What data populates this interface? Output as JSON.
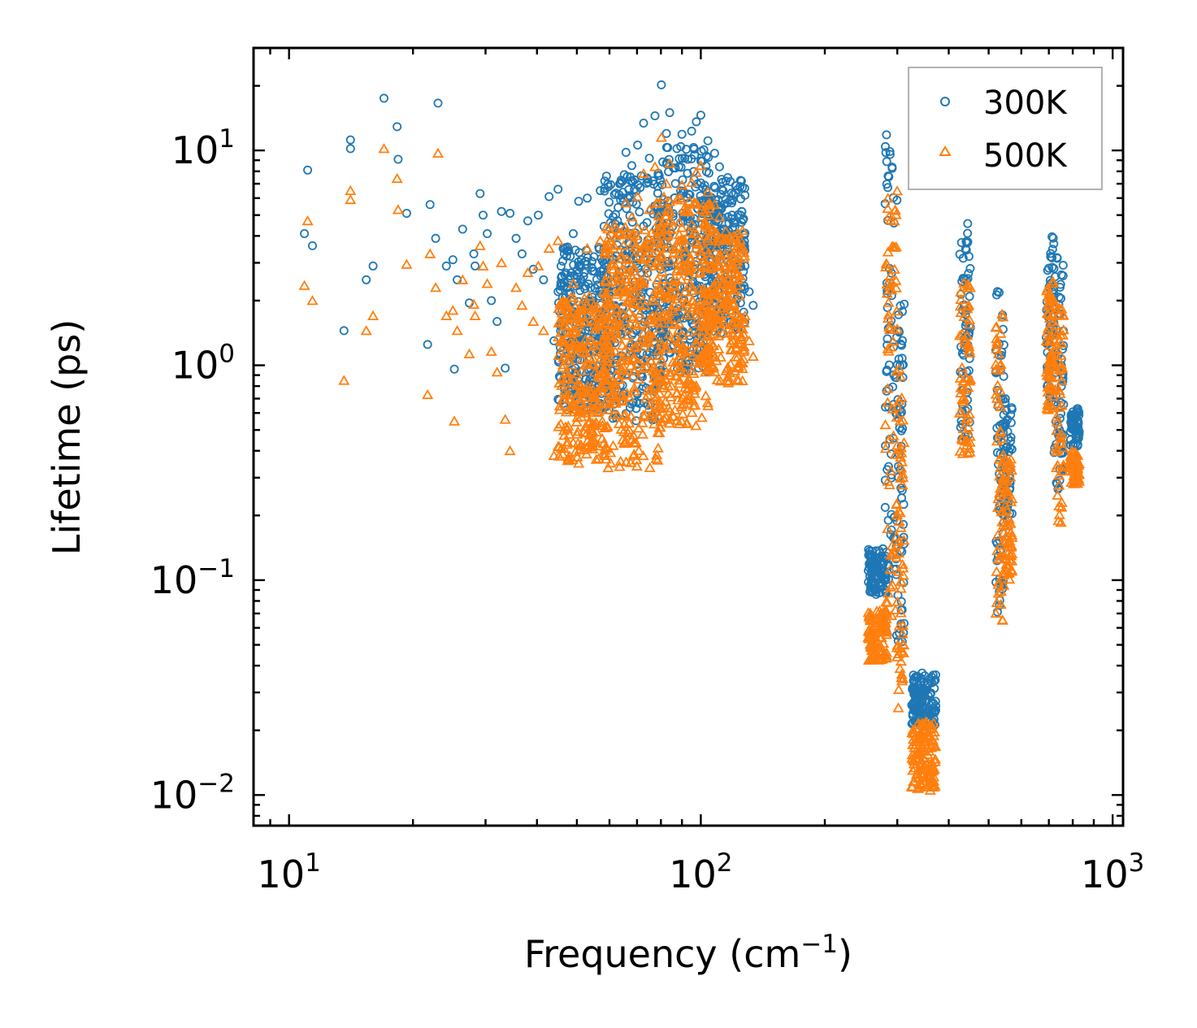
{
  "chart_data": {
    "type": "scatter",
    "title": "",
    "xlabel": "Frequency (cm",
    "xlabel_sup": "−1",
    "xlabel_suffix": ")",
    "ylabel": "Lifetime (ps)",
    "xscale": "log",
    "yscale": "log",
    "xlim": [
      8.2,
      1060
    ],
    "ylim": [
      0.0072,
      30
    ],
    "x_ticks": [
      {
        "value": 10,
        "base": "10",
        "exp": "1"
      },
      {
        "value": 100,
        "base": "10",
        "exp": "2"
      },
      {
        "value": 1000,
        "base": "10",
        "exp": "3"
      }
    ],
    "y_ticks": [
      {
        "value": 10,
        "base": "10",
        "exp": "1"
      },
      {
        "value": 1,
        "base": "10",
        "exp": "0"
      },
      {
        "value": 0.1,
        "base": "10",
        "exp": "−1"
      },
      {
        "value": 0.01,
        "base": "10",
        "exp": "−2"
      }
    ],
    "legend_position": "top-right",
    "series": [
      {
        "name": "300K",
        "marker": "circle",
        "color": "#1f77b4",
        "points": [
          [
            10.9,
            4.1
          ],
          [
            11.1,
            8.1
          ],
          [
            11.4,
            3.6
          ],
          [
            13.6,
            1.45
          ],
          [
            14.1,
            11.2
          ],
          [
            14.1,
            10.2
          ],
          [
            15.4,
            2.5
          ],
          [
            16.0,
            2.9
          ],
          [
            17.0,
            17.5
          ],
          [
            18.3,
            12.9
          ],
          [
            18.4,
            9.1
          ],
          [
            19.3,
            5.1
          ],
          [
            21.7,
            1.25
          ],
          [
            22.0,
            5.6
          ],
          [
            22.7,
            3.9
          ],
          [
            23.0,
            16.6
          ],
          [
            24.1,
            2.9
          ],
          [
            25.0,
            3.1
          ],
          [
            25.2,
            0.96
          ],
          [
            25.6,
            2.5
          ],
          [
            26.4,
            4.3
          ],
          [
            27.4,
            1.95
          ],
          [
            28.1,
            3.3
          ],
          [
            28.3,
            2.9
          ],
          [
            29.1,
            6.3
          ],
          [
            29.6,
            5.0
          ],
          [
            30.3,
            4.1
          ],
          [
            31.0,
            2.0
          ],
          [
            32.0,
            1.6
          ],
          [
            32.8,
            5.2
          ],
          [
            33.5,
            0.97
          ],
          [
            34.4,
            5.1
          ],
          [
            35.6,
            3.9
          ],
          [
            36.8,
            3.3
          ],
          [
            38.0,
            4.7
          ],
          [
            39.2,
            2.8
          ],
          [
            40.3,
            5.0
          ],
          [
            41.5,
            2.5
          ],
          [
            42.8,
            6.1
          ],
          [
            44.0,
            1.3
          ],
          [
            45.0,
            6.6
          ],
          [
            46.3,
            3.5
          ],
          [
            47.5,
            2.3
          ],
          [
            49.0,
            4.1
          ],
          [
            50.5,
            5.8
          ],
          [
            52.1,
            2.7
          ],
          [
            53.0,
            6.0
          ],
          [
            55.0,
            3.2
          ],
          [
            57.0,
            6.5
          ],
          [
            59.0,
            7.6
          ],
          [
            61.3,
            4.9
          ],
          [
            63.5,
            7.0
          ],
          [
            65.8,
            9.8
          ],
          [
            68.0,
            8.5
          ],
          [
            70.2,
            10.6
          ],
          [
            72.6,
            13.4
          ],
          [
            75.0,
            9.2
          ],
          [
            77.4,
            14.5
          ],
          [
            80.2,
            20.2
          ],
          [
            82.5,
            12.0
          ],
          [
            84.0,
            15.0
          ],
          [
            87.5,
            10.2
          ],
          [
            90.0,
            11.9
          ],
          [
            93.0,
            9.1
          ],
          [
            95.0,
            12.3
          ],
          [
            97.5,
            13.6
          ],
          [
            100.0,
            14.6
          ],
          [
            104.0,
            11.1
          ],
          [
            108.0,
            9.7
          ],
          [
            111.0,
            8.4
          ],
          [
            115.0,
            7.2
          ],
          [
            118.0,
            5.9
          ],
          [
            121.0,
            4.6
          ],
          [
            124.0,
            3.7
          ],
          [
            128.0,
            2.9
          ],
          [
            131.0,
            2.2
          ],
          [
            134.0,
            1.9
          ]
        ],
        "bands": [
          {
            "xmin": 45,
            "xmax": 60,
            "ymin": 0.62,
            "ymax": 3.6
          },
          {
            "xmin": 58,
            "xmax": 80,
            "ymin": 0.55,
            "ymax": 7.8
          },
          {
            "xmin": 78,
            "xmax": 105,
            "ymin": 0.9,
            "ymax": 10.5
          },
          {
            "xmin": 102,
            "xmax": 128,
            "ymin": 1.4,
            "ymax": 7.5
          },
          {
            "xmin": 255,
            "xmax": 283,
            "ymin": 0.085,
            "ymax": 0.14
          },
          {
            "xmin": 280,
            "xmax": 300,
            "ymin": 0.1,
            "ymax": 13.0
          },
          {
            "xmin": 298,
            "xmax": 312,
            "ymin": 0.05,
            "ymax": 2.0
          },
          {
            "xmin": 325,
            "xmax": 372,
            "ymin": 0.021,
            "ymax": 0.037
          },
          {
            "xmin": 425,
            "xmax": 452,
            "ymin": 0.45,
            "ymax": 4.6
          },
          {
            "xmin": 520,
            "xmax": 545,
            "ymin": 0.07,
            "ymax": 3.5
          },
          {
            "xmin": 540,
            "xmax": 570,
            "ymin": 0.2,
            "ymax": 0.7
          },
          {
            "xmin": 690,
            "xmax": 720,
            "ymin": 0.65,
            "ymax": 4.1
          },
          {
            "xmin": 720,
            "xmax": 760,
            "ymin": 0.25,
            "ymax": 3.4
          },
          {
            "xmin": 790,
            "xmax": 830,
            "ymin": 0.42,
            "ymax": 0.63
          }
        ]
      },
      {
        "name": "500K",
        "marker": "triangle",
        "color": "#ff7f0e",
        "points": [
          [
            10.9,
            2.35
          ],
          [
            11.1,
            4.7
          ],
          [
            11.4,
            2.0
          ],
          [
            13.6,
            0.85
          ],
          [
            14.1,
            6.5
          ],
          [
            14.1,
            5.9
          ],
          [
            15.4,
            1.45
          ],
          [
            16.0,
            1.7
          ],
          [
            17.0,
            10.2
          ],
          [
            18.3,
            7.4
          ],
          [
            18.4,
            5.3
          ],
          [
            19.3,
            2.95
          ],
          [
            21.7,
            0.73
          ],
          [
            22.0,
            3.3
          ],
          [
            22.7,
            2.3
          ],
          [
            23.0,
            9.7
          ],
          [
            24.1,
            1.7
          ],
          [
            25.0,
            1.8
          ],
          [
            25.2,
            0.55
          ],
          [
            25.6,
            1.45
          ],
          [
            26.4,
            2.5
          ],
          [
            27.4,
            1.13
          ],
          [
            28.1,
            1.92
          ],
          [
            28.3,
            1.7
          ],
          [
            29.1,
            3.6
          ],
          [
            29.6,
            2.9
          ],
          [
            30.3,
            2.4
          ],
          [
            31.0,
            1.16
          ],
          [
            32.0,
            0.93
          ],
          [
            32.8,
            3.0
          ],
          [
            33.5,
            0.56
          ],
          [
            34.4,
            0.4
          ],
          [
            35.6,
            2.3
          ],
          [
            36.8,
            1.9
          ],
          [
            38.0,
            2.7
          ],
          [
            39.2,
            1.6
          ],
          [
            40.3,
            2.9
          ],
          [
            41.5,
            1.45
          ],
          [
            42.8,
            3.5
          ],
          [
            44.0,
            0.38
          ],
          [
            45.0,
            3.8
          ],
          [
            46.3,
            2.0
          ],
          [
            47.5,
            0.36
          ],
          [
            49.0,
            2.4
          ],
          [
            50.5,
            0.35
          ],
          [
            52.1,
            1.6
          ],
          [
            53.0,
            3.5
          ],
          [
            55.0,
            1.9
          ],
          [
            57.0,
            3.8
          ],
          [
            59.0,
            4.4
          ],
          [
            61.3,
            2.8
          ],
          [
            63.5,
            4.1
          ],
          [
            65.8,
            5.7
          ],
          [
            68.0,
            4.9
          ],
          [
            70.2,
            6.1
          ],
          [
            72.6,
            7.8
          ],
          [
            75.0,
            5.3
          ],
          [
            77.4,
            8.4
          ],
          [
            80.2,
            11.5
          ],
          [
            82.5,
            7.0
          ],
          [
            84.0,
            8.7
          ],
          [
            87.5,
            5.9
          ],
          [
            90.0,
            6.9
          ],
          [
            93.0,
            5.3
          ],
          [
            95.0,
            7.1
          ],
          [
            97.5,
            7.9
          ],
          [
            100.0,
            8.5
          ],
          [
            104.0,
            6.4
          ],
          [
            108.0,
            5.6
          ],
          [
            111.0,
            4.9
          ],
          [
            115.0,
            4.2
          ],
          [
            118.0,
            3.4
          ],
          [
            121.0,
            2.7
          ],
          [
            124.0,
            2.1
          ],
          [
            128.0,
            1.7
          ],
          [
            131.0,
            1.3
          ],
          [
            134.0,
            1.1
          ]
        ],
        "bands": [
          {
            "xmin": 45,
            "xmax": 60,
            "ymin": 0.36,
            "ymax": 2.1
          },
          {
            "xmin": 58,
            "xmax": 80,
            "ymin": 0.32,
            "ymax": 4.5
          },
          {
            "xmin": 78,
            "xmax": 105,
            "ymin": 0.52,
            "ymax": 6.1
          },
          {
            "xmin": 102,
            "xmax": 128,
            "ymin": 0.82,
            "ymax": 4.4
          },
          {
            "xmin": 255,
            "xmax": 283,
            "ymin": 0.042,
            "ymax": 0.072
          },
          {
            "xmin": 280,
            "xmax": 300,
            "ymin": 0.05,
            "ymax": 6.8
          },
          {
            "xmin": 298,
            "xmax": 312,
            "ymin": 0.025,
            "ymax": 1.0
          },
          {
            "xmin": 325,
            "xmax": 372,
            "ymin": 0.0105,
            "ymax": 0.022
          },
          {
            "xmin": 425,
            "xmax": 452,
            "ymin": 0.36,
            "ymax": 2.6
          },
          {
            "xmin": 520,
            "xmax": 545,
            "ymin": 0.055,
            "ymax": 2.0
          },
          {
            "xmin": 540,
            "xmax": 570,
            "ymin": 0.1,
            "ymax": 0.4
          },
          {
            "xmin": 690,
            "xmax": 720,
            "ymin": 0.6,
            "ymax": 2.5
          },
          {
            "xmin": 720,
            "xmax": 760,
            "ymin": 0.18,
            "ymax": 2.0
          },
          {
            "xmin": 790,
            "xmax": 830,
            "ymin": 0.28,
            "ymax": 0.4
          }
        ]
      }
    ]
  }
}
